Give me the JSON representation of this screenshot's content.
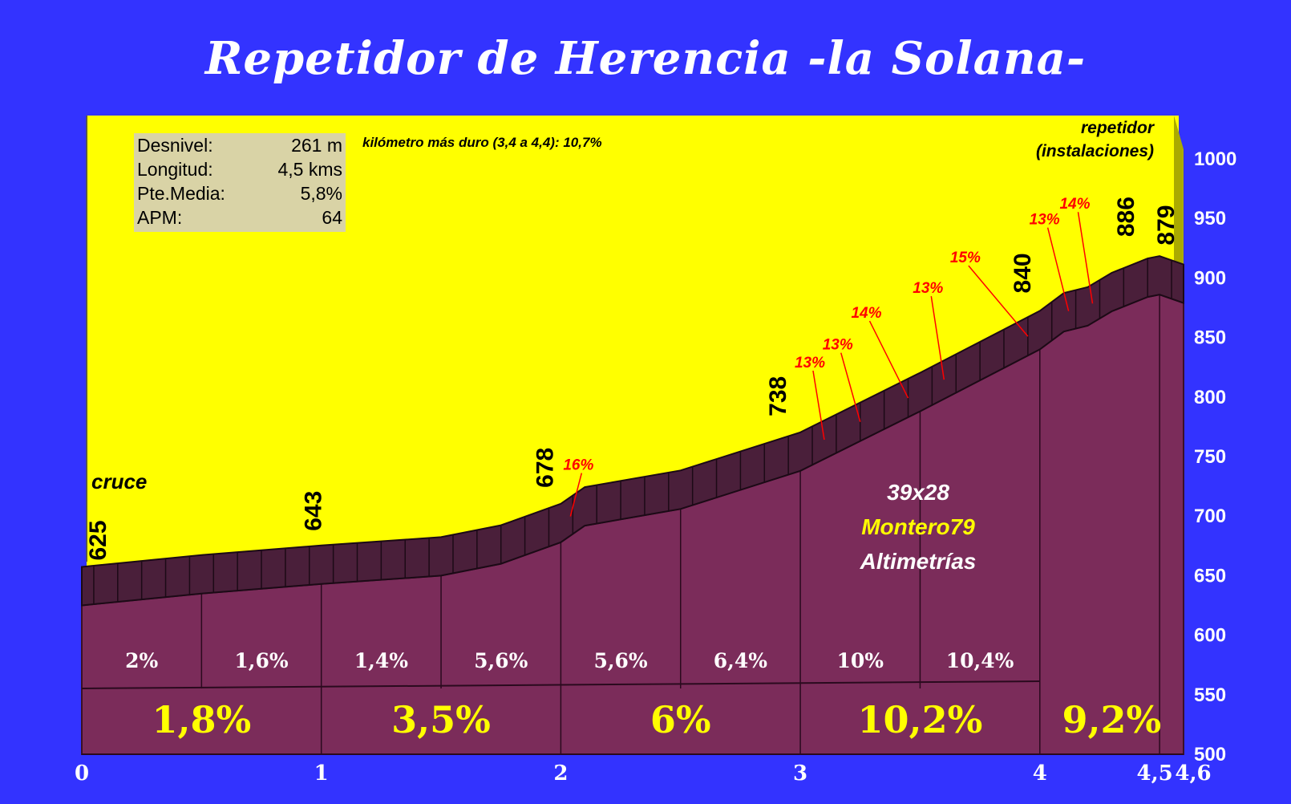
{
  "title": "Repetidor de Herencia -la Solana-",
  "stats": [
    {
      "label": "Desnivel:",
      "value": "261 m"
    },
    {
      "label": "Longitud:",
      "value": "4,5 kms"
    },
    {
      "label": "Pte.Media:",
      "value": "5,8%"
    },
    {
      "label": "APM:",
      "value": "64"
    }
  ],
  "note": "kilómetro más duro (3,4 a 4,4):  10,7%",
  "summit_label": [
    "repetidor",
    "(instalaciones)"
  ],
  "start_label": "cruce",
  "credits": {
    "gear": "39x28",
    "author": "Montero79",
    "site": "Altimetrías"
  },
  "colors": {
    "background": "#3333ff",
    "sky": "#ffff00",
    "profile": "#7b2c5a",
    "road": "#4a1f3a",
    "segment_text": "#ffff00",
    "grade_text": "#ff0000"
  },
  "chart_data": {
    "type": "area",
    "x_unit": "km",
    "y_unit": "m",
    "xlim": [
      0,
      4.6
    ],
    "ylim": [
      500,
      1000
    ],
    "x_ticks": [
      {
        "v": 0,
        "t": "0"
      },
      {
        "v": 1,
        "t": "1"
      },
      {
        "v": 2,
        "t": "2"
      },
      {
        "v": 3,
        "t": "3"
      },
      {
        "v": 4,
        "t": "4"
      },
      {
        "v": 4.5,
        "t": "4,5"
      },
      {
        "v": 4.6,
        "t": "4,6"
      }
    ],
    "y_ticks": [
      500,
      550,
      600,
      650,
      700,
      750,
      800,
      850,
      900,
      950,
      1000
    ],
    "profile": [
      [
        0,
        625
      ],
      [
        0.5,
        635
      ],
      [
        1,
        643
      ],
      [
        1.5,
        650
      ],
      [
        1.75,
        660
      ],
      [
        2,
        678
      ],
      [
        2.1,
        692
      ],
      [
        2.5,
        706
      ],
      [
        3,
        738
      ],
      [
        3.5,
        788
      ],
      [
        4,
        840
      ],
      [
        4.1,
        855
      ],
      [
        4.2,
        860
      ],
      [
        4.3,
        872
      ],
      [
        4.45,
        884
      ],
      [
        4.5,
        886
      ],
      [
        4.6,
        879
      ]
    ],
    "elevation_labels": [
      {
        "km": 0,
        "text": "625"
      },
      {
        "km": 1,
        "text": "643"
      },
      {
        "km": 2,
        "text": "678"
      },
      {
        "km": 3,
        "text": "738"
      },
      {
        "km": 4,
        "text": "840"
      },
      {
        "km": 4.5,
        "text": "886"
      },
      {
        "km": 4.6,
        "text": "879"
      }
    ],
    "half_km_grades": [
      "2%",
      "1,6%",
      "1,4%",
      "5,6%",
      "5,6%",
      "6,4%",
      "10%",
      "10,4%"
    ],
    "km_grades": [
      "1,8%",
      "3,5%",
      "6%",
      "10,2%",
      "9,2%"
    ],
    "max_grades": [
      {
        "km": 2.04,
        "text": "16%"
      },
      {
        "km": 3.1,
        "text": "13%"
      },
      {
        "km": 3.25,
        "text": "13%"
      },
      {
        "km": 3.45,
        "text": "14%"
      },
      {
        "km": 3.6,
        "text": "13%"
      },
      {
        "km": 3.95,
        "text": "15%"
      },
      {
        "km": 4.12,
        "text": "13%"
      },
      {
        "km": 4.22,
        "text": "14%"
      }
    ]
  }
}
